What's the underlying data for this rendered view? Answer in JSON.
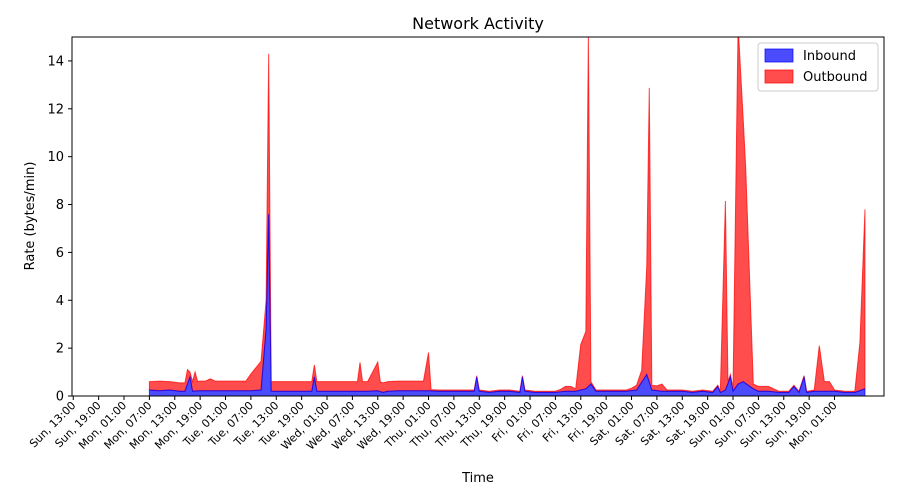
{
  "chart_data": {
    "type": "area",
    "stacked": true,
    "title": "Network Activity",
    "xlabel": "Time",
    "ylabel": "Rate (bytes/min)",
    "x_unit": "hours",
    "x_tick_labels": [
      "Sun, 13:00",
      "Sun, 19:00",
      "Mon, 01:00",
      "Mon, 07:00",
      "Mon, 13:00",
      "Mon, 19:00",
      "Tue, 01:00",
      "Tue, 07:00",
      "Tue, 13:00",
      "Tue, 19:00",
      "Wed, 01:00",
      "Wed, 07:00",
      "Wed, 13:00",
      "Wed, 19:00",
      "Thu, 01:00",
      "Thu, 07:00",
      "Thu, 13:00",
      "Thu, 19:00",
      "Fri, 01:00",
      "Fri, 07:00",
      "Fri, 13:00",
      "Fri, 19:00",
      "Sat, 01:00",
      "Sat, 07:00",
      "Sat, 13:00",
      "Sat, 19:00",
      "Sun, 01:00",
      "Sun, 07:00",
      "Sun, 13:00",
      "Sun, 19:00",
      "Mon, 01:00"
    ],
    "xlim_labels": [
      "Sun, 12:30",
      "Mon, 02:30"
    ],
    "ylim": [
      0,
      15
    ],
    "y_ticks": [
      0,
      2,
      4,
      6,
      8,
      10,
      12,
      14
    ],
    "grid": false,
    "legend_position": "upper right",
    "series": [
      {
        "name": "Inbound",
        "color": "#0000ff",
        "points": [
          [
            0,
            0.25
          ],
          [
            4,
            0.22
          ],
          [
            8,
            0.25
          ],
          [
            12,
            0.2
          ],
          [
            14,
            0.2
          ],
          [
            16,
            0.8
          ],
          [
            17,
            0.2
          ],
          [
            20,
            0.22
          ],
          [
            24,
            0.22
          ],
          [
            28,
            0.22
          ],
          [
            32,
            0.22
          ],
          [
            36,
            0.22
          ],
          [
            40,
            0.22
          ],
          [
            44,
            0.25
          ],
          [
            46,
            2.8
          ],
          [
            47,
            7.6
          ],
          [
            48,
            0.2
          ],
          [
            52,
            0.2
          ],
          [
            56,
            0.2
          ],
          [
            60,
            0.2
          ],
          [
            64,
            0.2
          ],
          [
            65,
            0.8
          ],
          [
            66,
            0.2
          ],
          [
            70,
            0.2
          ],
          [
            74,
            0.2
          ],
          [
            78,
            0.2
          ],
          [
            82,
            0.2
          ],
          [
            86,
            0.2
          ],
          [
            90,
            0.22
          ],
          [
            92,
            0.15
          ],
          [
            94,
            0.2
          ],
          [
            98,
            0.22
          ],
          [
            102,
            0.22
          ],
          [
            106,
            0.22
          ],
          [
            110,
            0.22
          ],
          [
            114,
            0.2
          ],
          [
            118,
            0.2
          ],
          [
            122,
            0.2
          ],
          [
            126,
            0.2
          ],
          [
            128,
            0.2
          ],
          [
            129,
            0.8
          ],
          [
            130,
            0.2
          ],
          [
            134,
            0.15
          ],
          [
            138,
            0.2
          ],
          [
            142,
            0.2
          ],
          [
            146,
            0.15
          ],
          [
            147,
            0.8
          ],
          [
            148,
            0.2
          ],
          [
            152,
            0.15
          ],
          [
            156,
            0.15
          ],
          [
            160,
            0.15
          ],
          [
            164,
            0.2
          ],
          [
            168,
            0.2
          ],
          [
            172,
            0.3
          ],
          [
            174,
            0.5
          ],
          [
            176,
            0.2
          ],
          [
            180,
            0.2
          ],
          [
            184,
            0.2
          ],
          [
            188,
            0.2
          ],
          [
            192,
            0.25
          ],
          [
            196,
            0.9
          ],
          [
            198,
            0.25
          ],
          [
            202,
            0.2
          ],
          [
            206,
            0.2
          ],
          [
            210,
            0.2
          ],
          [
            214,
            0.15
          ],
          [
            218,
            0.2
          ],
          [
            222,
            0.15
          ],
          [
            224,
            0.4
          ],
          [
            225,
            0.15
          ],
          [
            227,
            0.25
          ],
          [
            229,
            0.8
          ],
          [
            230,
            0.2
          ],
          [
            232,
            0.5
          ],
          [
            234,
            0.6
          ],
          [
            238,
            0.3
          ],
          [
            240,
            0.2
          ],
          [
            244,
            0.2
          ],
          [
            248,
            0.15
          ],
          [
            252,
            0.15
          ],
          [
            254,
            0.4
          ],
          [
            256,
            0.15
          ],
          [
            258,
            0.8
          ],
          [
            259,
            0.15
          ],
          [
            262,
            0.2
          ],
          [
            266,
            0.2
          ],
          [
            270,
            0.2
          ],
          [
            274,
            0.15
          ],
          [
            278,
            0.15
          ],
          [
            282,
            0.3
          ]
        ]
      },
      {
        "name": "Outbound",
        "color": "#ff0000",
        "points": [
          [
            0,
            0.35
          ],
          [
            4,
            0.4
          ],
          [
            8,
            0.35
          ],
          [
            12,
            0.35
          ],
          [
            14,
            0.35
          ],
          [
            15,
            0.6
          ],
          [
            16,
            0.2
          ],
          [
            17,
            0.4
          ],
          [
            18,
            0.8
          ],
          [
            19,
            0.4
          ],
          [
            22,
            0.4
          ],
          [
            24,
            0.5
          ],
          [
            26,
            0.4
          ],
          [
            28,
            0.4
          ],
          [
            32,
            0.4
          ],
          [
            36,
            0.4
          ],
          [
            38,
            0.4
          ],
          [
            40,
            0.7
          ],
          [
            44,
            1.2
          ],
          [
            46,
            1.2
          ],
          [
            47,
            6.7
          ],
          [
            48,
            0.4
          ],
          [
            52,
            0.4
          ],
          [
            56,
            0.4
          ],
          [
            60,
            0.4
          ],
          [
            64,
            0.4
          ],
          [
            65,
            0.5
          ],
          [
            66,
            0.4
          ],
          [
            70,
            0.4
          ],
          [
            74,
            0.4
          ],
          [
            76,
            0.4
          ],
          [
            78,
            0.4
          ],
          [
            80,
            0.4
          ],
          [
            82,
            0.4
          ],
          [
            83,
            1.2
          ],
          [
            84,
            0.4
          ],
          [
            86,
            0.4
          ],
          [
            88,
            0.8
          ],
          [
            90,
            1.2
          ],
          [
            91,
            0.4
          ],
          [
            94,
            0.4
          ],
          [
            98,
            0.4
          ],
          [
            102,
            0.4
          ],
          [
            106,
            0.4
          ],
          [
            108,
            0.4
          ],
          [
            110,
            1.6
          ],
          [
            111,
            0.05
          ],
          [
            114,
            0.05
          ],
          [
            118,
            0.05
          ],
          [
            122,
            0.05
          ],
          [
            126,
            0.05
          ],
          [
            128,
            0.05
          ],
          [
            130,
            0.05
          ],
          [
            134,
            0.05
          ],
          [
            138,
            0.05
          ],
          [
            142,
            0.05
          ],
          [
            146,
            0.05
          ],
          [
            148,
            0.05
          ],
          [
            152,
            0.05
          ],
          [
            156,
            0.05
          ],
          [
            160,
            0.05
          ],
          [
            162,
            0.1
          ],
          [
            164,
            0.2
          ],
          [
            166,
            0.2
          ],
          [
            168,
            0.1
          ],
          [
            170,
            1.9
          ],
          [
            172,
            2.4
          ],
          [
            173,
            14.8
          ],
          [
            174,
            0.1
          ],
          [
            176,
            0.05
          ],
          [
            180,
            0.05
          ],
          [
            184,
            0.05
          ],
          [
            188,
            0.05
          ],
          [
            190,
            0.1
          ],
          [
            192,
            0.2
          ],
          [
            194,
            0.5
          ],
          [
            196,
            4.5
          ],
          [
            197,
            12.3
          ],
          [
            198,
            0.2
          ],
          [
            200,
            0.2
          ],
          [
            202,
            0.3
          ],
          [
            204,
            0.05
          ],
          [
            206,
            0.05
          ],
          [
            210,
            0.05
          ],
          [
            214,
            0.05
          ],
          [
            218,
            0.05
          ],
          [
            222,
            0.05
          ],
          [
            224,
            0.05
          ],
          [
            225,
            0.05
          ],
          [
            227,
            7.9
          ],
          [
            228,
            0.1
          ],
          [
            230,
            0.1
          ],
          [
            232,
            15.0
          ],
          [
            235,
            9.0
          ],
          [
            238,
            0.2
          ],
          [
            240,
            0.2
          ],
          [
            244,
            0.2
          ],
          [
            248,
            0.05
          ],
          [
            252,
            0.05
          ],
          [
            256,
            0.05
          ],
          [
            258,
            0.05
          ],
          [
            262,
            0.05
          ],
          [
            264,
            1.9
          ],
          [
            266,
            0.4
          ],
          [
            268,
            0.4
          ],
          [
            270,
            0.05
          ],
          [
            274,
            0.05
          ],
          [
            278,
            0.05
          ],
          [
            280,
            2.0
          ],
          [
            282,
            7.5
          ]
        ]
      }
    ]
  }
}
